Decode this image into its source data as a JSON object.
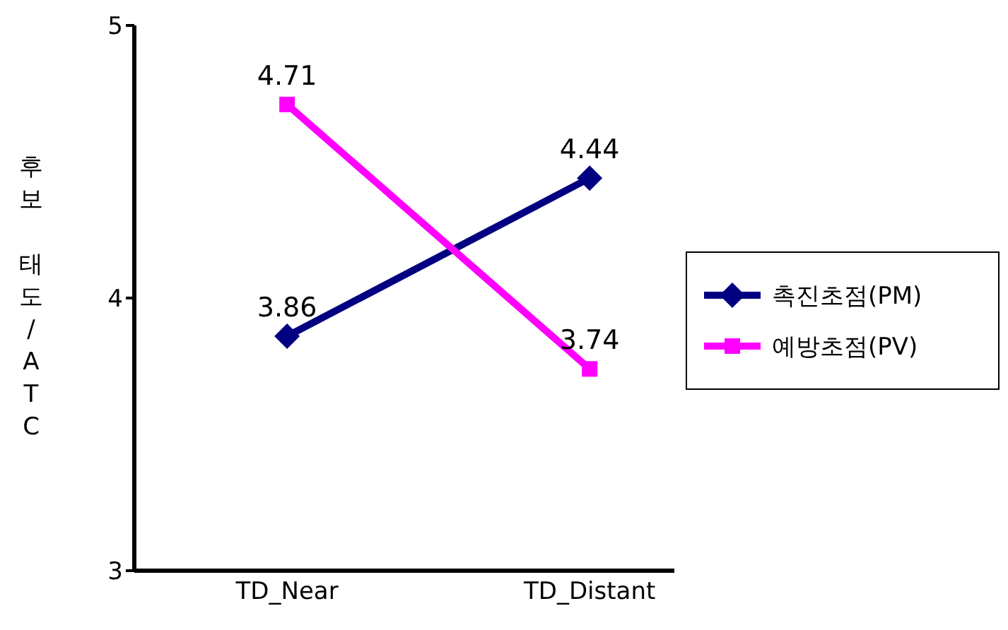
{
  "chart_data": {
    "type": "line",
    "ylabel": "후보 태도/ATC",
    "categories": [
      "TD_Near",
      "TD_Distant"
    ],
    "series": [
      {
        "name": "촉진초점(PM)",
        "color": "#000080",
        "values": [
          3.86,
          4.44
        ],
        "marker": "diamond"
      },
      {
        "name": "예방초점(PV)",
        "color": "#ff00ff",
        "values": [
          4.71,
          3.74
        ],
        "marker": "square"
      }
    ],
    "ylim": [
      3,
      5
    ],
    "yticks": [
      3,
      4,
      5
    ],
    "grid": false,
    "legend": "right",
    "data_labels": true,
    "line_style": "solid"
  }
}
